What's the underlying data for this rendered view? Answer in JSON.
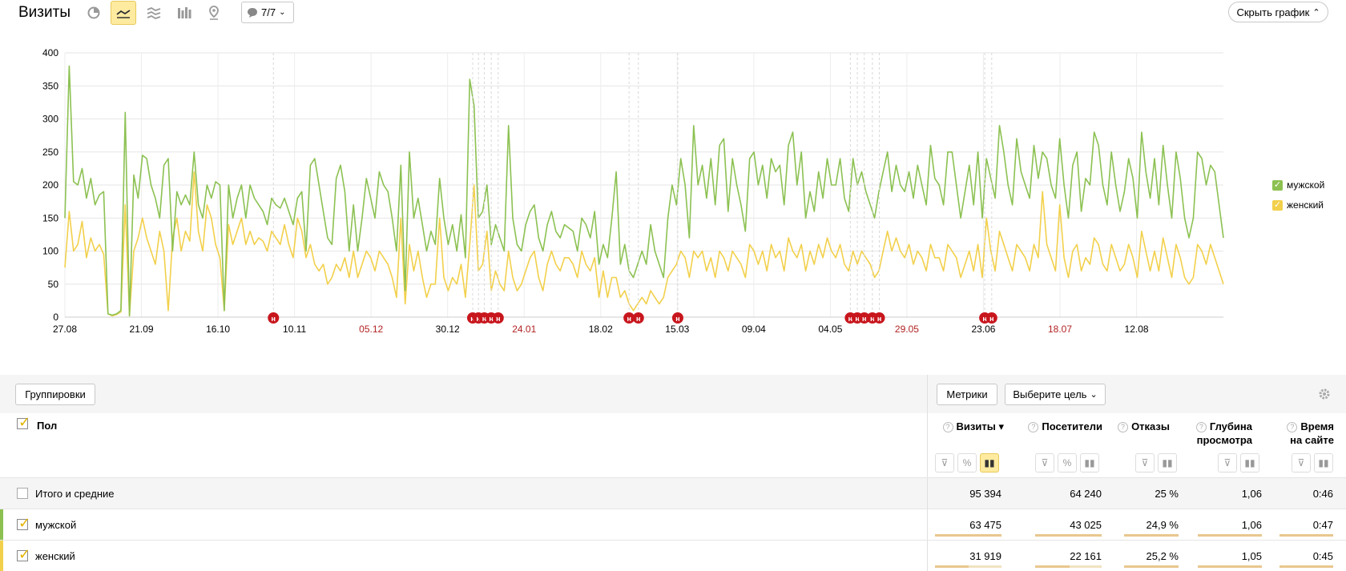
{
  "header": {
    "title": "Визиты",
    "notes_label": "7/7",
    "hide_chart_label": "Скрыть график"
  },
  "chart_data": {
    "type": "line",
    "y_ticks": [
      "0",
      "50",
      "100",
      "150",
      "200",
      "250",
      "300",
      "350",
      "400"
    ],
    "ylim": [
      0,
      400
    ],
    "x_ticks": [
      {
        "label": "27.08",
        "red": false
      },
      {
        "label": "21.09",
        "red": false
      },
      {
        "label": "16.10",
        "red": false
      },
      {
        "label": "10.11",
        "red": false
      },
      {
        "label": "05.12",
        "red": true
      },
      {
        "label": "30.12",
        "red": false
      },
      {
        "label": "24.01",
        "red": true
      },
      {
        "label": "18.02",
        "red": false
      },
      {
        "label": "15.03",
        "red": false
      },
      {
        "label": "09.04",
        "red": false
      },
      {
        "label": "04.05",
        "red": false
      },
      {
        "label": "29.05",
        "red": true
      },
      {
        "label": "23.06",
        "red": false
      },
      {
        "label": "18.07",
        "red": true
      },
      {
        "label": "12.08",
        "red": false
      }
    ],
    "series": [
      {
        "name": "мужской",
        "color": "#8cc152",
        "values": [
          150,
          380,
          205,
          200,
          225,
          180,
          210,
          170,
          185,
          190,
          5,
          3,
          5,
          10,
          310,
          2,
          215,
          180,
          245,
          240,
          200,
          180,
          150,
          230,
          240,
          100,
          190,
          170,
          185,
          170,
          250,
          170,
          150,
          200,
          180,
          205,
          200,
          10,
          200,
          150,
          180,
          200,
          150,
          200,
          180,
          170,
          160,
          140,
          180,
          170,
          165,
          180,
          160,
          140,
          180,
          190,
          100,
          230,
          240,
          200,
          160,
          120,
          110,
          210,
          230,
          190,
          100,
          170,
          100,
          150,
          210,
          180,
          150,
          220,
          200,
          190,
          150,
          100,
          230,
          40,
          250,
          150,
          180,
          140,
          100,
          130,
          110,
          210,
          150,
          110,
          140,
          100,
          155,
          90,
          360,
          320,
          150,
          160,
          200,
          110,
          140,
          120,
          100,
          290,
          150,
          110,
          100,
          140,
          160,
          170,
          120,
          100,
          140,
          160,
          130,
          120,
          140,
          135,
          130,
          100,
          150,
          140,
          120,
          160,
          80,
          110,
          90,
          150,
          220,
          80,
          110,
          70,
          60,
          80,
          100,
          80,
          140,
          100,
          80,
          60,
          150,
          200,
          170,
          240,
          200,
          120,
          290,
          200,
          230,
          180,
          240,
          170,
          260,
          270,
          160,
          240,
          200,
          170,
          130,
          240,
          250,
          200,
          230,
          180,
          240,
          220,
          230,
          170,
          260,
          280,
          200,
          250,
          150,
          190,
          160,
          220,
          180,
          240,
          200,
          200,
          240,
          180,
          160,
          240,
          200,
          220,
          190,
          170,
          150,
          190,
          220,
          250,
          190,
          230,
          200,
          190,
          220,
          180,
          230,
          200,
          170,
          260,
          210,
          200,
          170,
          250,
          250,
          200,
          150,
          190,
          230,
          170,
          250,
          150,
          240,
          210,
          180,
          290,
          250,
          200,
          170,
          270,
          220,
          200,
          180,
          260,
          210,
          250,
          240,
          200,
          180,
          270,
          200,
          150,
          230,
          250,
          160,
          210,
          200,
          280,
          260,
          200,
          170,
          250,
          200,
          160,
          190,
          240,
          210,
          150,
          280,
          220,
          180,
          240,
          170,
          260,
          200,
          150,
          250,
          210,
          150,
          120,
          150,
          250,
          240,
          200,
          230,
          220,
          170,
          120
        ]
      },
      {
        "name": "женский",
        "color": "#f2d04b",
        "values": [
          75,
          160,
          100,
          110,
          145,
          90,
          120,
          100,
          110,
          95,
          5,
          2,
          4,
          8,
          170,
          2,
          100,
          120,
          150,
          120,
          100,
          80,
          130,
          100,
          10,
          120,
          150,
          100,
          130,
          115,
          220,
          130,
          100,
          170,
          150,
          110,
          90,
          10,
          140,
          110,
          130,
          150,
          110,
          130,
          110,
          120,
          115,
          100,
          130,
          120,
          110,
          140,
          110,
          90,
          150,
          130,
          90,
          110,
          80,
          70,
          80,
          50,
          60,
          80,
          70,
          90,
          60,
          100,
          60,
          80,
          100,
          90,
          70,
          100,
          90,
          80,
          60,
          30,
          150,
          20,
          110,
          70,
          100,
          60,
          30,
          50,
          50,
          150,
          60,
          40,
          60,
          50,
          80,
          30,
          110,
          200,
          70,
          80,
          130,
          40,
          70,
          50,
          40,
          100,
          60,
          40,
          50,
          70,
          90,
          100,
          60,
          40,
          80,
          100,
          80,
          70,
          90,
          90,
          80,
          60,
          100,
          80,
          70,
          90,
          30,
          70,
          30,
          60,
          60,
          30,
          40,
          20,
          10,
          20,
          30,
          20,
          40,
          30,
          20,
          30,
          60,
          70,
          80,
          100,
          90,
          60,
          100,
          90,
          100,
          70,
          90,
          60,
          100,
          90,
          70,
          100,
          90,
          80,
          60,
          110,
          100,
          80,
          100,
          70,
          110,
          90,
          100,
          70,
          120,
          100,
          90,
          110,
          70,
          100,
          80,
          110,
          90,
          120,
          100,
          90,
          110,
          80,
          70,
          100,
          80,
          100,
          90,
          80,
          60,
          70,
          100,
          130,
          100,
          120,
          100,
          90,
          110,
          80,
          100,
          90,
          70,
          110,
          90,
          90,
          70,
          110,
          100,
          90,
          60,
          80,
          100,
          70,
          110,
          60,
          150,
          100,
          70,
          130,
          110,
          90,
          70,
          110,
          100,
          90,
          70,
          110,
          90,
          190,
          110,
          90,
          70,
          170,
          90,
          60,
          100,
          110,
          70,
          90,
          80,
          120,
          110,
          80,
          70,
          110,
          90,
          70,
          80,
          110,
          90,
          60,
          130,
          100,
          70,
          100,
          70,
          120,
          90,
          60,
          110,
          90,
          60,
          50,
          60,
          110,
          100,
          80,
          110,
          90,
          70,
          50
        ]
      }
    ]
  },
  "legend": [
    {
      "label": "мужской",
      "color": "#8cc152"
    },
    {
      "label": "женский",
      "color": "#f2d04b"
    }
  ],
  "toolbar": {
    "groupings_label": "Группировки",
    "metrics_label": "Метрики",
    "goal_label": "Выберите цель"
  },
  "table": {
    "dimension_header": "Пол",
    "columns": [
      {
        "label_lines": [
          "Визиты ▾"
        ]
      },
      {
        "label_lines": [
          "Посетители"
        ]
      },
      {
        "label_lines": [
          "Отказы"
        ]
      },
      {
        "label_lines": [
          "Глубина",
          "просмотра"
        ]
      },
      {
        "label_lines": [
          "Время",
          "на сайте"
        ]
      }
    ],
    "rows": [
      {
        "label": "Итого и средние",
        "checked": false,
        "values": [
          "95 394",
          "64 240",
          "25 %",
          "1,06",
          "0:46"
        ],
        "bars": []
      },
      {
        "label": "мужской",
        "checked": true,
        "accent": "#8cc152",
        "values": [
          "63 475",
          "43 025",
          "24,9 %",
          "1,06",
          "0:47"
        ],
        "bars": [
          1.0,
          1.0,
          1.0,
          1.0,
          1.0
        ]
      },
      {
        "label": "женский",
        "checked": true,
        "accent": "#f2d04b",
        "values": [
          "31 919",
          "22 161",
          "25,2 %",
          "1,05",
          "0:45"
        ],
        "bars": [
          0.5,
          0.52,
          1.0,
          1.0,
          1.0
        ]
      }
    ]
  }
}
